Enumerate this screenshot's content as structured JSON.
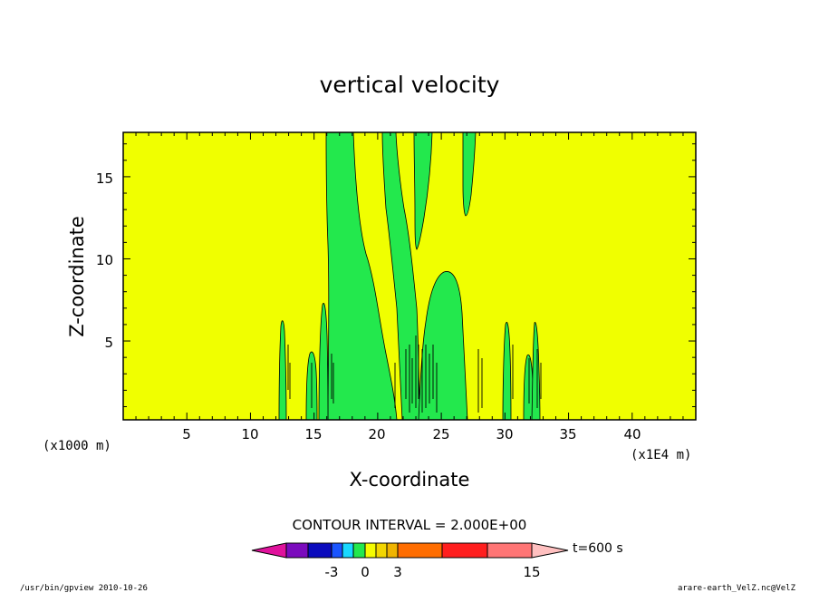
{
  "chart_data": {
    "type": "contour",
    "title": "vertical velocity",
    "xlabel": "X-coordinate",
    "ylabel": "Z-coordinate",
    "x_units_left": "(x1000 m)",
    "x_units_right": "(x1E4 m)",
    "xlim": [
      0,
      45
    ],
    "ylim": [
      0.2,
      17.7
    ],
    "x_ticks": [
      "5",
      "10",
      "15",
      "20",
      "25",
      "30",
      "35",
      "40"
    ],
    "y_ticks": [
      "5",
      "10",
      "15"
    ],
    "contour_interval_text": "CONTOUR INTERVAL = 2.000E+00",
    "colorbar": {
      "time_label": "t=600 s",
      "tick_labels": [
        "-3",
        "0",
        "3",
        "15"
      ],
      "colors": [
        "#e0129c",
        "#7b0bbd",
        "#0b0bbd",
        "#1a55ff",
        "#18d8ff",
        "#23e84d",
        "#f5fc00",
        "#f3d600",
        "#f0b400",
        "#ff6d00",
        "#ff1e1e",
        "#ff7575",
        "#ffc0c0"
      ]
    },
    "background_color": "#f0ff00",
    "region_color": "#23e84d",
    "footer_left": "/usr/bin/gpview   2010-10-26",
    "footer_right": "arare-earth_VelZ.nc@VelZ"
  }
}
